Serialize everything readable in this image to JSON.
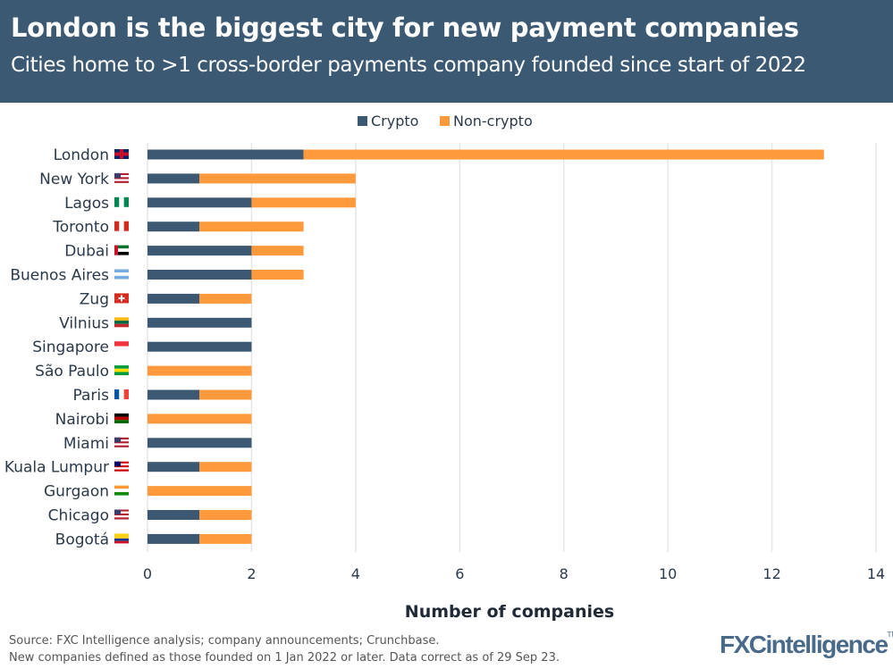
{
  "header": {
    "title": "London is the biggest city for new payment companies",
    "subtitle": "Cities home to >1 cross-border payments company founded since start of 2022"
  },
  "footer": {
    "source": "Source: FXC Intelligence analysis; company announcements; Crunchbase.",
    "note": "New companies defined as those founded on 1 Jan 2022 or later. Data correct as of 29 Sep 23.",
    "logo": "FXCintelligence",
    "tm": "TM"
  },
  "chart_data": {
    "type": "bar",
    "orientation": "horizontal",
    "stacked": true,
    "categories": [
      "London",
      "New York",
      "Lagos",
      "Toronto",
      "Dubai",
      "Buenos Aires",
      "Zug",
      "Vilnius",
      "Singapore",
      "São Paulo",
      "Paris",
      "Nairobi",
      "Miami",
      "Kuala Lumpur",
      "Gurgaon",
      "Chicago",
      "Bogotá"
    ],
    "flags": [
      "gb",
      "us",
      "ng",
      "ca",
      "ae",
      "ar",
      "ch",
      "lt",
      "sg",
      "br",
      "fr",
      "ke",
      "us",
      "my",
      "in",
      "us",
      "co"
    ],
    "series": [
      {
        "name": "Crypto",
        "color": "#3c5873",
        "values": [
          3,
          1,
          2,
          1,
          2,
          2,
          1,
          2,
          2,
          0,
          1,
          0,
          2,
          1,
          0,
          1,
          1
        ]
      },
      {
        "name": "Non-crypto",
        "color": "#ff9a3c",
        "values": [
          10,
          3,
          2,
          2,
          1,
          1,
          1,
          0,
          0,
          2,
          1,
          2,
          0,
          1,
          2,
          1,
          1
        ]
      }
    ],
    "xlabel": "Number of companies",
    "xlim": [
      0,
      14
    ],
    "xticks": [
      0,
      2,
      4,
      6,
      8,
      10,
      12,
      14
    ],
    "grid": true,
    "legend": "top"
  }
}
